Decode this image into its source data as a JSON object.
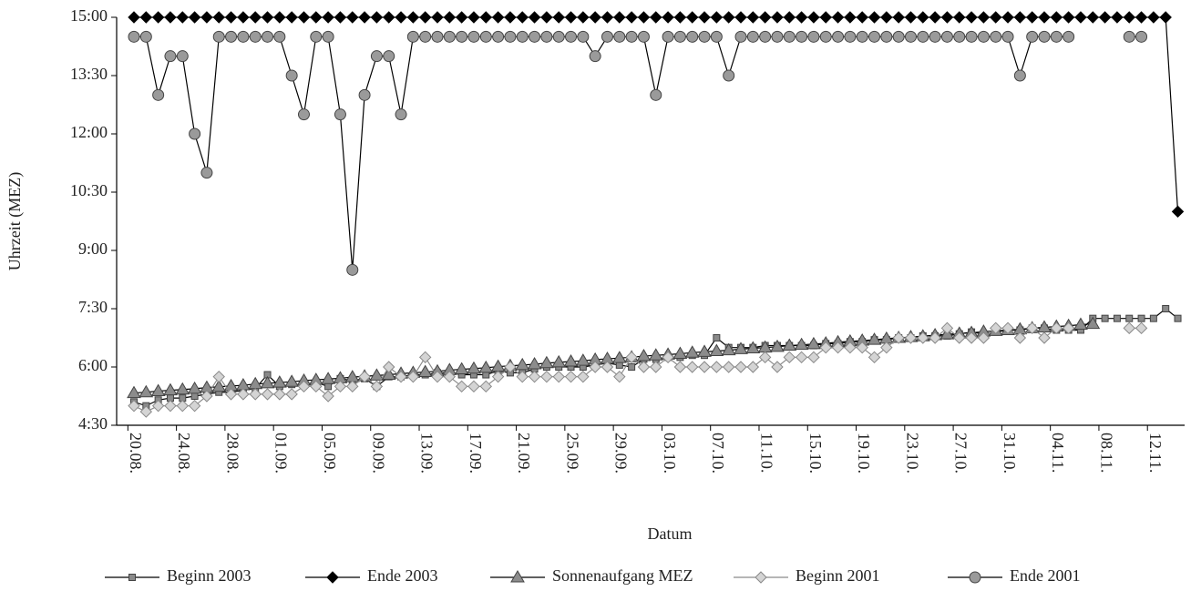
{
  "chart_data": {
    "type": "line",
    "x_label": "Datum",
    "y_label": "Uhrzeit (MEZ)",
    "categories": [
      "20.08.",
      null,
      null,
      null,
      "24.08.",
      null,
      null,
      null,
      "28.08.",
      null,
      null,
      null,
      "01.09.",
      null,
      null,
      null,
      "05.09.",
      null,
      null,
      null,
      "09.09.",
      null,
      null,
      null,
      "13.09.",
      null,
      null,
      null,
      "17.09.",
      null,
      null,
      null,
      "21.09.",
      null,
      null,
      null,
      "25.09.",
      null,
      null,
      null,
      "29.09.",
      null,
      null,
      null,
      "03.10.",
      null,
      null,
      null,
      "07.10.",
      null,
      null,
      null,
      "11.10.",
      null,
      null,
      null,
      "15.10.",
      null,
      null,
      null,
      "19.10.",
      null,
      null,
      null,
      "23.10.",
      null,
      null,
      null,
      "27.10.",
      null,
      null,
      null,
      "31.10.",
      null,
      null,
      null,
      "04.11.",
      null,
      null,
      null,
      "08.11.",
      null,
      null,
      null,
      "12.11.",
      null,
      null
    ],
    "ylim": [
      4.5,
      15
    ],
    "yticks": [
      {
        "value": 4.5,
        "label": "4:30"
      },
      {
        "value": 6,
        "label": "6:00"
      },
      {
        "value": 7.5,
        "label": "7:30"
      },
      {
        "value": 9,
        "label": "9:00"
      },
      {
        "value": 10.5,
        "label": "10:30"
      },
      {
        "value": 12,
        "label": "12:00"
      },
      {
        "value": 13.5,
        "label": "13:30"
      },
      {
        "value": 15,
        "label": "15:00"
      }
    ],
    "grid": false,
    "legend": "bottom",
    "series": [
      {
        "name": "Beginn 2003",
        "color": "#8a8a8a",
        "line_color": "#000000",
        "marker": "square",
        "values": [
          5.1,
          5.0,
          5.15,
          5.2,
          5.2,
          5.25,
          5.3,
          5.35,
          5.35,
          5.4,
          5.45,
          5.8,
          5.5,
          5.55,
          5.55,
          5.6,
          5.5,
          5.7,
          5.65,
          5.7,
          5.5,
          5.75,
          5.75,
          5.8,
          5.8,
          5.85,
          5.85,
          5.8,
          5.8,
          5.8,
          5.9,
          5.85,
          5.85,
          5.95,
          6.0,
          6.0,
          6.0,
          6.0,
          6.05,
          6.1,
          6.05,
          6.0,
          6.2,
          6.2,
          6.25,
          6.25,
          6.3,
          6.3,
          6.75,
          6.5,
          6.5,
          6.5,
          6.55,
          6.55,
          6.55,
          6.55,
          6.55,
          6.6,
          6.6,
          6.65,
          6.65,
          6.7,
          6.7,
          6.75,
          6.75,
          6.8,
          6.8,
          6.8,
          6.85,
          6.9,
          6.85,
          6.9,
          6.95,
          6.95,
          7.0,
          7.0,
          6.95,
          6.95,
          6.95,
          7.25,
          7.25,
          7.25,
          7.25,
          7.25,
          7.25,
          7.5,
          7.25
        ]
      },
      {
        "name": "Ende 2003",
        "color": "#000000",
        "line_color": "#000000",
        "marker": "diamond",
        "values": [
          15,
          15,
          15,
          15,
          15,
          15,
          15,
          15,
          15,
          15,
          15,
          15,
          15,
          15,
          15,
          15,
          15,
          15,
          15,
          15,
          15,
          15,
          15,
          15,
          15,
          15,
          15,
          15,
          15,
          15,
          15,
          15,
          15,
          15,
          15,
          15,
          15,
          15,
          15,
          15,
          15,
          15,
          15,
          15,
          15,
          15,
          15,
          15,
          15,
          15,
          15,
          15,
          15,
          15,
          15,
          15,
          15,
          15,
          15,
          15,
          15,
          15,
          15,
          15,
          15,
          15,
          15,
          15,
          15,
          15,
          15,
          15,
          15,
          15,
          15,
          15,
          15,
          15,
          15,
          15,
          15,
          15,
          15,
          15,
          15,
          15,
          10
        ]
      },
      {
        "name": "Sonnenaufgang MEZ",
        "color": "#8c8c8c",
        "line_color": "#000000",
        "marker": "triangle",
        "values": [
          5.33,
          5.35,
          5.38,
          5.4,
          5.42,
          5.44,
          5.47,
          5.49,
          5.51,
          5.53,
          5.56,
          5.58,
          5.6,
          5.62,
          5.65,
          5.67,
          5.69,
          5.71,
          5.74,
          5.76,
          5.78,
          5.8,
          5.83,
          5.85,
          5.87,
          5.89,
          5.92,
          5.94,
          5.96,
          5.98,
          6.01,
          6.03,
          6.05,
          6.07,
          6.1,
          6.12,
          6.14,
          6.16,
          6.19,
          6.21,
          6.23,
          6.25,
          6.28,
          6.3,
          6.32,
          6.34,
          6.37,
          6.39,
          6.41,
          6.43,
          6.46,
          6.48,
          6.5,
          6.52,
          6.55,
          6.57,
          6.59,
          6.61,
          6.64,
          6.66,
          6.68,
          6.7,
          6.73,
          6.75,
          6.77,
          6.79,
          6.82,
          6.84,
          6.86,
          6.88,
          6.91,
          6.93,
          6.95,
          6.97,
          7.0,
          7.02,
          7.04,
          7.06,
          7.09,
          7.11,
          null,
          null,
          null,
          null,
          null,
          null,
          null
        ]
      },
      {
        "name": "Beginn 2001",
        "color": "#d4d4d4",
        "line_color": "#8a8a8a",
        "marker": "diamond",
        "values": [
          5.0,
          4.85,
          5.0,
          5.0,
          5.0,
          5.0,
          5.25,
          5.75,
          5.3,
          5.3,
          5.3,
          5.3,
          5.3,
          5.3,
          5.5,
          5.5,
          5.25,
          5.5,
          5.5,
          5.75,
          5.5,
          6.0,
          5.75,
          5.75,
          6.25,
          5.75,
          5.75,
          5.5,
          5.5,
          5.5,
          5.75,
          6.0,
          5.75,
          5.75,
          5.75,
          5.75,
          5.75,
          5.75,
          6.0,
          6.0,
          5.75,
          6.25,
          6.0,
          6.0,
          6.25,
          6.0,
          6.0,
          6.0,
          6.0,
          6.0,
          6.0,
          6.0,
          6.25,
          6.0,
          6.25,
          6.25,
          6.25,
          6.5,
          6.5,
          6.5,
          6.5,
          6.25,
          6.5,
          6.75,
          6.75,
          6.75,
          6.75,
          7.0,
          6.75,
          6.75,
          6.75,
          7.0,
          7.0,
          6.75,
          7.0,
          6.75,
          7.0,
          7.0,
          null,
          null,
          null,
          null,
          7.0,
          7.0,
          null,
          null,
          null
        ]
      },
      {
        "name": "Ende 2001",
        "color": "#9a9a9a",
        "line_color": "#000000",
        "marker": "circle",
        "values": [
          14.5,
          14.5,
          13,
          14,
          14,
          12,
          11,
          14.5,
          14.5,
          14.5,
          14.5,
          14.5,
          14.5,
          13.5,
          12.5,
          14.5,
          14.5,
          12.5,
          8.5,
          13,
          14,
          14,
          12.5,
          14.5,
          14.5,
          14.5,
          14.5,
          14.5,
          14.5,
          14.5,
          14.5,
          14.5,
          14.5,
          14.5,
          14.5,
          14.5,
          14.5,
          14.5,
          14,
          14.5,
          14.5,
          14.5,
          14.5,
          13,
          14.5,
          14.5,
          14.5,
          14.5,
          14.5,
          13.5,
          14.5,
          14.5,
          14.5,
          14.5,
          14.5,
          14.5,
          14.5,
          14.5,
          14.5,
          14.5,
          14.5,
          14.5,
          14.5,
          14.5,
          14.5,
          14.5,
          14.5,
          14.5,
          14.5,
          14.5,
          14.5,
          14.5,
          14.5,
          13.5,
          14.5,
          14.5,
          14.5,
          14.5,
          null,
          null,
          null,
          null,
          14.5,
          14.5,
          null,
          null,
          null
        ]
      }
    ]
  }
}
